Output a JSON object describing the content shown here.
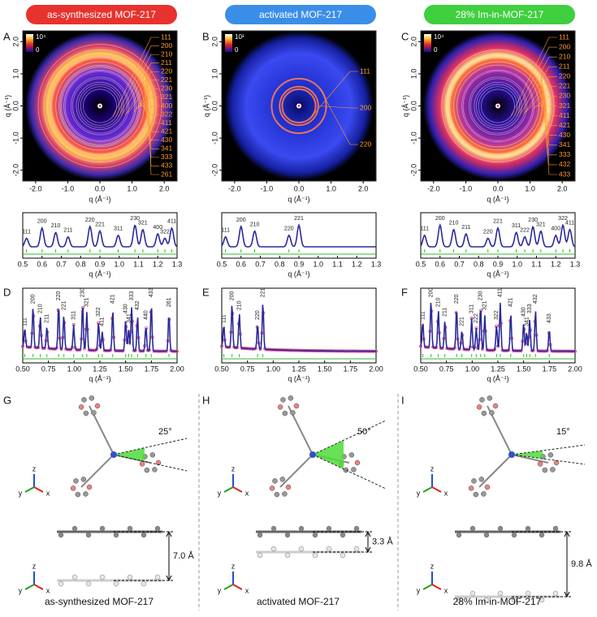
{
  "panels": [
    {
      "header": "as-synthesized MOF-217",
      "detector": {
        "letter": "A",
        "colorbar": [
          "10⁴",
          "0"
        ],
        "xticks": [
          "-2.0",
          "-1.0",
          "0.0",
          "1.0",
          "2.0"
        ],
        "yticks": [
          "2.0",
          "1.0",
          "0.0",
          "-1.0",
          "-2.0"
        ],
        "xlabel": "q (Å⁻¹)",
        "ylabel": "q (Å⁻¹)",
        "rings": [
          "111",
          "200",
          "210",
          "211",
          "220",
          "221",
          "230",
          "321",
          "400",
          "322",
          "411",
          "421",
          "430",
          "341",
          "333",
          "433",
          "261"
        ]
      },
      "profile": {
        "peaks": [
          "111",
          "200",
          "210",
          "211",
          "220",
          "221",
          "311",
          "230",
          "321",
          "400",
          "322",
          "411"
        ],
        "xticks": [
          "0.5",
          "0.6",
          "0.7",
          "0.8",
          "0.9",
          "1.0",
          "1.1",
          "1.2",
          "1.3"
        ],
        "xlabel": "q (Å⁻¹)"
      },
      "refinement": {
        "letter": "D",
        "peaks": [
          "111",
          "200",
          "210",
          "211",
          "220",
          "221",
          "311",
          "230",
          "321",
          "322",
          "411",
          "421",
          "430",
          "341",
          "333",
          "432",
          "440",
          "433",
          "261"
        ],
        "xticks": [
          "0.50",
          "0.75",
          "1.00",
          "1.25",
          "1.50",
          "1.75",
          "2.00"
        ],
        "xlabel": "q (Å⁻¹)"
      },
      "structure": {
        "letter": "G",
        "angle": "25°",
        "distance": "7.0 Å",
        "axes": {
          "z": "z",
          "y": "y",
          "x": "x"
        },
        "caption": "as-synthesized MOF-217"
      }
    },
    {
      "header": "activated MOF-217",
      "detector": {
        "letter": "B",
        "colorbar": [
          "10³",
          "0"
        ],
        "xticks": [
          "-2.0",
          "-1.0",
          "0.0",
          "1.0",
          "2.0"
        ],
        "yticks": [
          "2.0",
          "1.0",
          "0.0",
          "-1.0",
          "-2.0"
        ],
        "xlabel": "q (Å⁻¹)",
        "ylabel": "q (Å⁻¹)",
        "rings": [
          "111",
          "200",
          "220"
        ]
      },
      "profile": {
        "peaks": [
          "111",
          "200",
          "210",
          "220",
          "221"
        ],
        "xticks": [
          "0.5",
          "0.6",
          "0.7",
          "0.8",
          "0.9",
          "1.0",
          "1.1",
          "1.2",
          "1.3"
        ],
        "xlabel": "q (Å⁻¹)"
      },
      "refinement": {
        "letter": "E",
        "peaks": [
          "111",
          "200",
          "210",
          "220",
          "221"
        ],
        "xticks": [
          "0.50",
          "0.75",
          "1.00",
          "1.25",
          "1.50",
          "1.75",
          "2.00"
        ],
        "xlabel": "q (Å⁻¹)"
      },
      "structure": {
        "letter": "H",
        "angle": "50°",
        "distance": "3.3 Å",
        "axes": {
          "z": "z",
          "y": "y",
          "x": "x"
        },
        "caption": "activated MOF-217"
      }
    },
    {
      "header": "28% Im-in-MOF-217",
      "detector": {
        "letter": "C",
        "colorbar": [
          "10⁴",
          "0"
        ],
        "xticks": [
          "-2.0",
          "-1.0",
          "0.0",
          "1.0",
          "2.0"
        ],
        "yticks": [
          "2.0",
          "1.0",
          "0.0",
          "-1.0",
          "-2.0"
        ],
        "xlabel": "q (Å⁻¹)",
        "ylabel": "q (Å⁻¹)",
        "rings": [
          "111",
          "200",
          "210",
          "211",
          "220",
          "221",
          "230",
          "321",
          "411",
          "421",
          "430",
          "341",
          "333",
          "432",
          "433"
        ]
      },
      "profile": {
        "peaks": [
          "111",
          "200",
          "210",
          "211",
          "220",
          "221",
          "311",
          "222",
          "230",
          "321",
          "400",
          "322",
          "411"
        ],
        "xticks": [
          "0.5",
          "0.6",
          "0.7",
          "0.8",
          "0.9",
          "1.0",
          "1.1",
          "1.2",
          "1.3"
        ],
        "xlabel": "q (Å⁻¹)"
      },
      "refinement": {
        "letter": "F",
        "peaks": [
          "111",
          "200",
          "210",
          "211",
          "221",
          "220",
          "311",
          "222",
          "230",
          "321",
          "322",
          "411",
          "421",
          "430",
          "341",
          "432",
          "333",
          "433"
        ],
        "xticks": [
          "0.50",
          "0.75",
          "1.00",
          "1.25",
          "1.50",
          "1.75",
          "2.00"
        ],
        "xlabel": "q (Å⁻¹)"
      },
      "structure": {
        "letter": "I",
        "angle": "15°",
        "distance": "9.8 Å",
        "axes": {
          "z": "z",
          "y": "y",
          "x": "x"
        },
        "caption": "28% Im-in-MOF-217"
      }
    }
  ]
}
